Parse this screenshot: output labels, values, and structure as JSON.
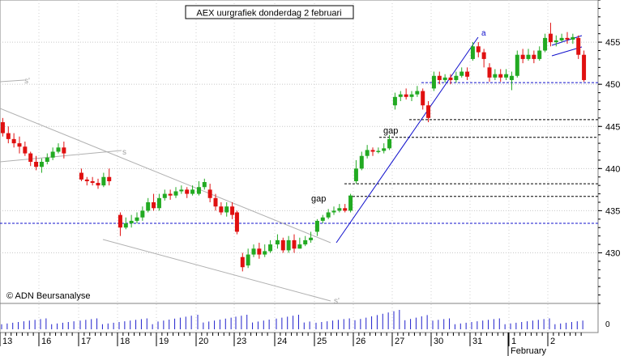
{
  "chart_data": {
    "type": "candlestick",
    "title": "AEX uurgrafiek donderdag 2 februari",
    "watermark": "© ADN Beursanalyse",
    "ylim": [
      424,
      460
    ],
    "y_ticks": [
      {
        "value": 430,
        "label": "430"
      },
      {
        "value": 435,
        "label": "435"
      },
      {
        "value": 440,
        "label": "440"
      },
      {
        "value": 445,
        "label": "445"
      },
      {
        "value": 450,
        "label": "450"
      },
      {
        "value": 455,
        "label": "455"
      }
    ],
    "x_ticks": [
      "13",
      "16",
      "17",
      "18",
      "19",
      "20",
      "23",
      "24",
      "25",
      "26",
      "27",
      "30",
      "31",
      "1",
      "2"
    ],
    "month_label": "February",
    "volume_tick_label": "0",
    "colors": {
      "up": "#22aa22",
      "down": "#e01010",
      "trend": "#1010cc",
      "channel": "#b0b0b0",
      "volume": "#2020cc"
    },
    "annotations": [
      {
        "text": "gap",
        "value": 437.5
      },
      {
        "text": "gap",
        "value": 446.5
      },
      {
        "text": "a",
        "value": 457.5
      },
      {
        "text": "s",
        "value": 442.5
      },
      {
        "text": "s'",
        "value": 451.7
      },
      {
        "text": "s'",
        "value": 425.3
      }
    ],
    "support_levels": [
      433.5,
      450.2
    ],
    "gap_levels": [
      436.7,
      438.2,
      443.7,
      445.8
    ],
    "series": [
      {
        "day": "13",
        "candles": [
          [
            445.5,
            444.2,
            446.0,
            443.8
          ],
          [
            444.2,
            443.5,
            445.0,
            443.0
          ],
          [
            443.5,
            443.0,
            444.2,
            442.5
          ],
          [
            443.0,
            442.6,
            443.8,
            441.8
          ],
          [
            442.6,
            441.8,
            443.2,
            441.5
          ],
          [
            441.8,
            440.8,
            442.0,
            440.3
          ],
          [
            440.8,
            440.2,
            441.5,
            439.8
          ]
        ]
      },
      {
        "day": "16",
        "candles": [
          [
            440.2,
            440.8,
            441.2,
            439.5
          ],
          [
            440.8,
            441.3,
            441.8,
            440.5
          ],
          [
            441.3,
            442.0,
            442.5,
            441.0
          ],
          [
            442.0,
            442.5,
            443.0,
            441.8
          ],
          [
            442.5,
            441.8,
            443.2,
            441.2
          ]
        ]
      },
      {
        "day": "17",
        "candles": [
          [
            439.5,
            438.7,
            440.0,
            438.5
          ],
          [
            438.7,
            438.5,
            439.0,
            438.0
          ],
          [
            438.5,
            438.3,
            439.0,
            438.0
          ],
          [
            438.3,
            438.0,
            438.8,
            437.6
          ],
          [
            438.0,
            439.0,
            439.5,
            437.8
          ],
          [
            439.0,
            438.5,
            440.0,
            438.0
          ]
        ]
      },
      {
        "day": "18",
        "candles": [
          [
            434.5,
            433.0,
            434.8,
            432.0
          ],
          [
            433.0,
            433.5,
            434.2,
            432.8
          ],
          [
            433.5,
            433.8,
            434.5,
            433.0
          ],
          [
            433.8,
            434.2,
            434.8,
            433.5
          ],
          [
            434.2,
            435.0,
            435.5,
            433.8
          ],
          [
            435.0,
            436.0,
            436.5,
            434.8
          ],
          [
            436.0,
            435.3,
            437.0,
            435.0
          ]
        ]
      },
      {
        "day": "19",
        "candles": [
          [
            435.3,
            436.5,
            437.0,
            435.0
          ],
          [
            436.5,
            437.0,
            437.5,
            436.2
          ],
          [
            437.0,
            436.8,
            437.5,
            436.3
          ],
          [
            436.8,
            437.3,
            437.8,
            436.5
          ],
          [
            437.3,
            437.5,
            438.0,
            437.0
          ],
          [
            437.5,
            437.0,
            437.8,
            436.5
          ],
          [
            437.0,
            437.5,
            438.0,
            436.8
          ]
        ]
      },
      {
        "day": "20",
        "candles": [
          [
            437.0,
            437.8,
            438.5,
            436.8
          ],
          [
            437.8,
            438.4,
            438.8,
            437.5
          ],
          [
            437.5,
            436.5,
            438.2,
            436.0
          ],
          [
            436.5,
            435.5,
            437.0,
            435.0
          ],
          [
            435.5,
            434.8,
            436.0,
            434.5
          ],
          [
            434.8,
            435.5,
            436.0,
            434.3
          ],
          [
            435.5,
            434.5,
            436.0,
            434.0
          ]
        ]
      },
      {
        "day": "23",
        "candles": [
          [
            434.8,
            432.5,
            435.0,
            432.2
          ],
          [
            429.5,
            428.3,
            430.0,
            427.8
          ],
          [
            428.5,
            429.8,
            430.5,
            428.2
          ],
          [
            429.8,
            430.5,
            431.0,
            429.5
          ],
          [
            430.5,
            429.8,
            431.2,
            429.3
          ],
          [
            429.8,
            430.2,
            431.0,
            429.5
          ],
          [
            430.2,
            431.0,
            431.5,
            430.0
          ]
        ]
      },
      {
        "day": "24",
        "candles": [
          [
            431.0,
            431.5,
            432.2,
            430.5
          ],
          [
            431.5,
            430.3,
            431.8,
            430.0
          ],
          [
            430.3,
            431.5,
            432.0,
            430.0
          ],
          [
            431.5,
            430.5,
            432.2,
            430.0
          ],
          [
            430.5,
            431.0,
            431.8,
            430.5
          ],
          [
            431.0,
            431.5,
            432.0,
            430.8
          ],
          [
            431.5,
            431.8,
            432.5,
            431.2
          ]
        ]
      },
      {
        "day": "25",
        "candles": [
          [
            432.5,
            433.8,
            434.0,
            432.0
          ],
          [
            433.8,
            434.2,
            434.5,
            433.5
          ],
          [
            434.2,
            434.8,
            435.2,
            434.0
          ],
          [
            434.8,
            435.0,
            435.5,
            434.5
          ],
          [
            435.0,
            435.3,
            435.8,
            434.8
          ],
          [
            435.3,
            435.0,
            435.8,
            434.8
          ],
          [
            435.0,
            436.8,
            437.0,
            434.8
          ]
        ]
      },
      {
        "day": "26",
        "candles": [
          [
            438.5,
            440.0,
            441.0,
            438.2
          ],
          [
            440.0,
            441.5,
            442.0,
            439.8
          ],
          [
            441.5,
            442.2,
            442.8,
            441.2
          ],
          [
            442.2,
            442.0,
            442.5,
            441.5
          ],
          [
            442.0,
            442.1,
            442.5,
            441.8
          ],
          [
            442.1,
            442.4,
            443.0,
            441.8
          ],
          [
            442.4,
            443.5,
            444.0,
            442.2
          ]
        ]
      },
      {
        "day": "27",
        "candles": [
          [
            447.5,
            448.5,
            449.0,
            447.0
          ],
          [
            448.5,
            448.8,
            449.2,
            448.0
          ],
          [
            448.8,
            448.5,
            449.5,
            448.2
          ],
          [
            448.5,
            448.8,
            449.2,
            448.0
          ],
          [
            448.8,
            449.2,
            449.8,
            448.5
          ],
          [
            449.2,
            447.5,
            449.5,
            447.0
          ],
          [
            447.5,
            446.0,
            448.0,
            445.5
          ]
        ]
      },
      {
        "day": "30",
        "candles": [
          [
            449.5,
            451.0,
            451.5,
            449.2
          ],
          [
            451.0,
            450.5,
            451.5,
            450.0
          ],
          [
            450.5,
            450.8,
            451.2,
            450.2
          ],
          [
            450.8,
            450.5,
            451.2,
            450.0
          ],
          [
            450.5,
            451.0,
            451.5,
            450.2
          ],
          [
            451.0,
            451.5,
            452.0,
            450.8
          ],
          [
            451.5,
            450.9,
            452.0,
            450.5
          ]
        ]
      },
      {
        "day": "31",
        "candles": [
          [
            453.0,
            454.5,
            455.0,
            452.8
          ],
          [
            454.5,
            453.8,
            455.0,
            453.2
          ],
          [
            453.8,
            453.0,
            454.2,
            452.0
          ],
          [
            452.0,
            450.8,
            452.5,
            450.3
          ],
          [
            450.8,
            451.2,
            451.8,
            450.5
          ],
          [
            451.2,
            450.8,
            451.8,
            450.3
          ],
          [
            450.8,
            451.2,
            451.8,
            450.5
          ]
        ]
      },
      {
        "day": "1",
        "candles": [
          [
            450.5,
            451.0,
            451.5,
            449.3
          ],
          [
            451.0,
            453.5,
            454.0,
            450.8
          ],
          [
            453.5,
            453.0,
            454.2,
            452.5
          ],
          [
            453.0,
            453.5,
            454.2,
            452.8
          ],
          [
            453.5,
            453.0,
            454.0,
            452.5
          ],
          [
            453.0,
            454.0,
            454.5,
            452.8
          ],
          [
            454.0,
            455.5,
            456.0,
            453.8
          ]
        ]
      },
      {
        "day": "2",
        "candles": [
          [
            456.0,
            455.0,
            457.3,
            454.5
          ],
          [
            455.0,
            455.2,
            455.8,
            454.5
          ],
          [
            455.2,
            455.5,
            456.0,
            455.0
          ],
          [
            455.5,
            455.3,
            456.2,
            454.8
          ],
          [
            455.3,
            455.6,
            456.0,
            454.8
          ],
          [
            455.5,
            453.5,
            455.8,
            453.0
          ],
          [
            453.5,
            450.5,
            454.0,
            450.3
          ]
        ]
      }
    ]
  }
}
